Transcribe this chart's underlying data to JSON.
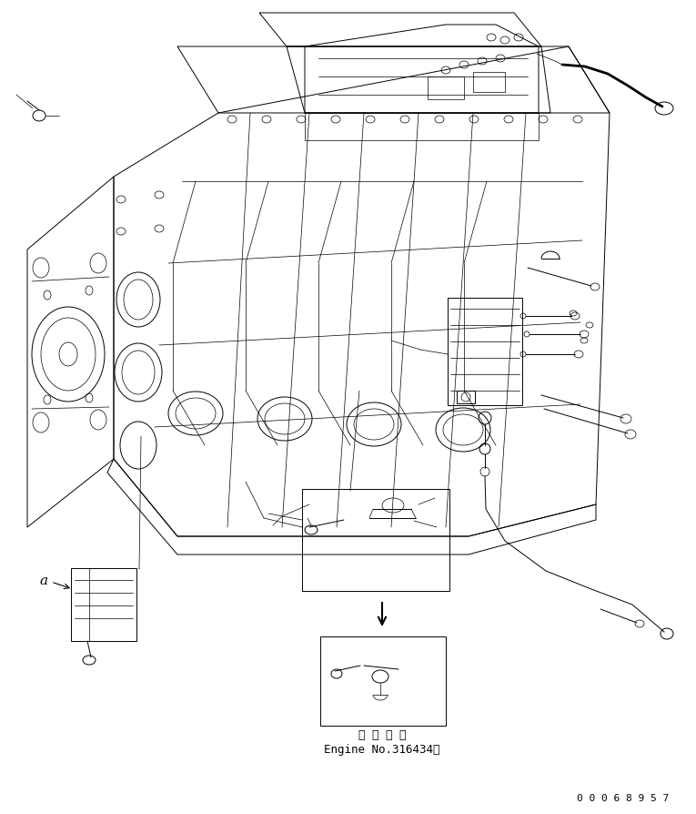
{
  "fig_width": 7.65,
  "fig_height": 8.95,
  "dpi": 100,
  "bg_color": "#ffffff",
  "line_color": "#000000",
  "text_color": "#000000",
  "annotation_text_1": "適 用 号 機",
  "annotation_text_2": "Engine No.316434～",
  "label_a": "a",
  "part_number": "0 0 0 6 8 9 5 7",
  "font_size_annotation": 9,
  "font_size_partnumber": 8,
  "font_family": "monospace"
}
